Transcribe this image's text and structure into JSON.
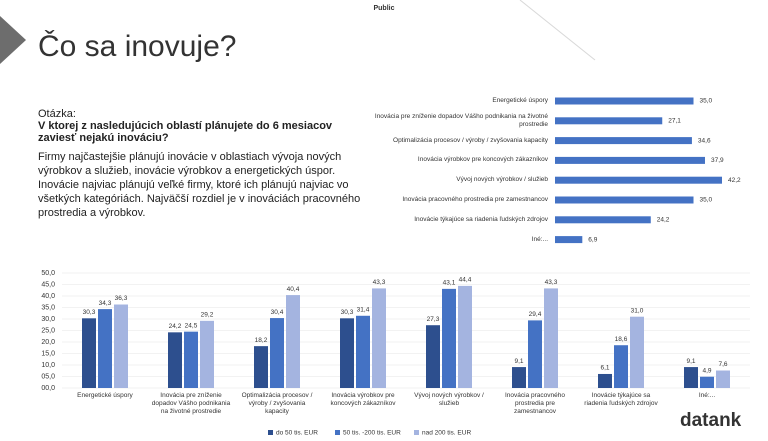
{
  "label": "Public",
  "title": "Čo sa inovuje?",
  "question_label": "Otázka:",
  "question": "V ktorej z nasledujúcich oblastí plánujete do 6 mesiacov zaviesť nejakú inováciu?",
  "body": "Firmy najčastejšie plánujú inovácie v oblastiach vývoja nových výrobkov a služieb, inovácie výrobkov a energetických úspor. Inovácie najviac plánujú veľké firmy, ktoré ich plánujú najviac vo všetkých kategóriách. Najväčší rozdiel je v inováciách pracovného prostredia a výrobkov.",
  "logo": "datank",
  "chart_data": [
    {
      "type": "hbar",
      "categories": [
        "Energetické úspory",
        "Inovácia pre zníženie dopadov Vášho podnikania na životné prostredie",
        "Optimalizácia procesov / výroby / zvyšovania kapacity",
        "Inovácia výrobkov pre koncových zákazníkov",
        "Vývoj nových výrobkov / služieb",
        "Inovácia pracovného prostredia pre zamestnancov",
        "Inovácie týkajúce sa riadenia ľudských zdrojov",
        "Iné:..."
      ],
      "values": [
        35.0,
        27.1,
        34.6,
        37.9,
        42.2,
        35.0,
        24.2,
        6.9
      ],
      "value_labels": [
        "35,0",
        "27,1",
        "34,6",
        "37,9",
        "42,2",
        "35,0",
        "24,2",
        "6,9"
      ],
      "color": "#4472c4"
    },
    {
      "type": "grouped_bar",
      "categories": [
        "Energetické úspory",
        "Inovácia pre zníženie dopadov Vášho podnikania na životné prostredie",
        "Optimalizácia procesov / výroby / zvyšovania kapacity",
        "Inovácia výrobkov pre koncových zákazníkov",
        "Vývoj nových výrobkov / služieb",
        "Inovácia pracovného prostredia pre zamestnancov",
        "Inovácie týkajúce sa riadenia ľudských zdrojov",
        "Iné:..."
      ],
      "series": [
        {
          "name": "do 50 tis. EUR",
          "color": "#2d4f8e",
          "values": [
            30.3,
            24.2,
            18.2,
            30.3,
            27.3,
            9.1,
            6.1,
            9.1
          ],
          "value_labels": [
            "30,3",
            "24,2",
            "18,2",
            "30,3",
            "27,3",
            "9,1",
            "6,1",
            "9,1"
          ]
        },
        {
          "name": "50 tis. -200 tis. EUR",
          "color": "#4472c4",
          "values": [
            34.3,
            24.5,
            30.4,
            31.4,
            43.1,
            29.4,
            18.6,
            4.9
          ],
          "value_labels": [
            "34,3",
            "24,5",
            "30,4",
            "31,4",
            "43,1",
            "29,4",
            "18,6",
            "4,9"
          ]
        },
        {
          "name": "nad 200 tis. EUR",
          "color": "#a4b4e0",
          "values": [
            36.3,
            29.2,
            40.4,
            43.3,
            44.4,
            43.3,
            31.0,
            7.6
          ],
          "value_labels": [
            "36,3",
            "29,2",
            "40,4",
            "43,3",
            "44,4",
            "43,3",
            "31,0",
            "7,6"
          ]
        }
      ],
      "ylim": [
        0,
        50
      ],
      "yticks": [
        {
          "value": 0,
          "label": "00,0"
        },
        {
          "value": 5,
          "label": "05,0"
        },
        {
          "value": 10,
          "label": "10,0"
        },
        {
          "value": 15,
          "label": "15,0"
        },
        {
          "value": 20,
          "label": "20,0"
        },
        {
          "value": 25,
          "label": "25,0"
        },
        {
          "value": 30,
          "label": "30,0"
        },
        {
          "value": 35,
          "label": "35,0"
        },
        {
          "value": 40,
          "label": "40,0"
        },
        {
          "value": 45,
          "label": "45,0"
        },
        {
          "value": 50,
          "label": "50,0"
        }
      ],
      "grid": true
    }
  ]
}
